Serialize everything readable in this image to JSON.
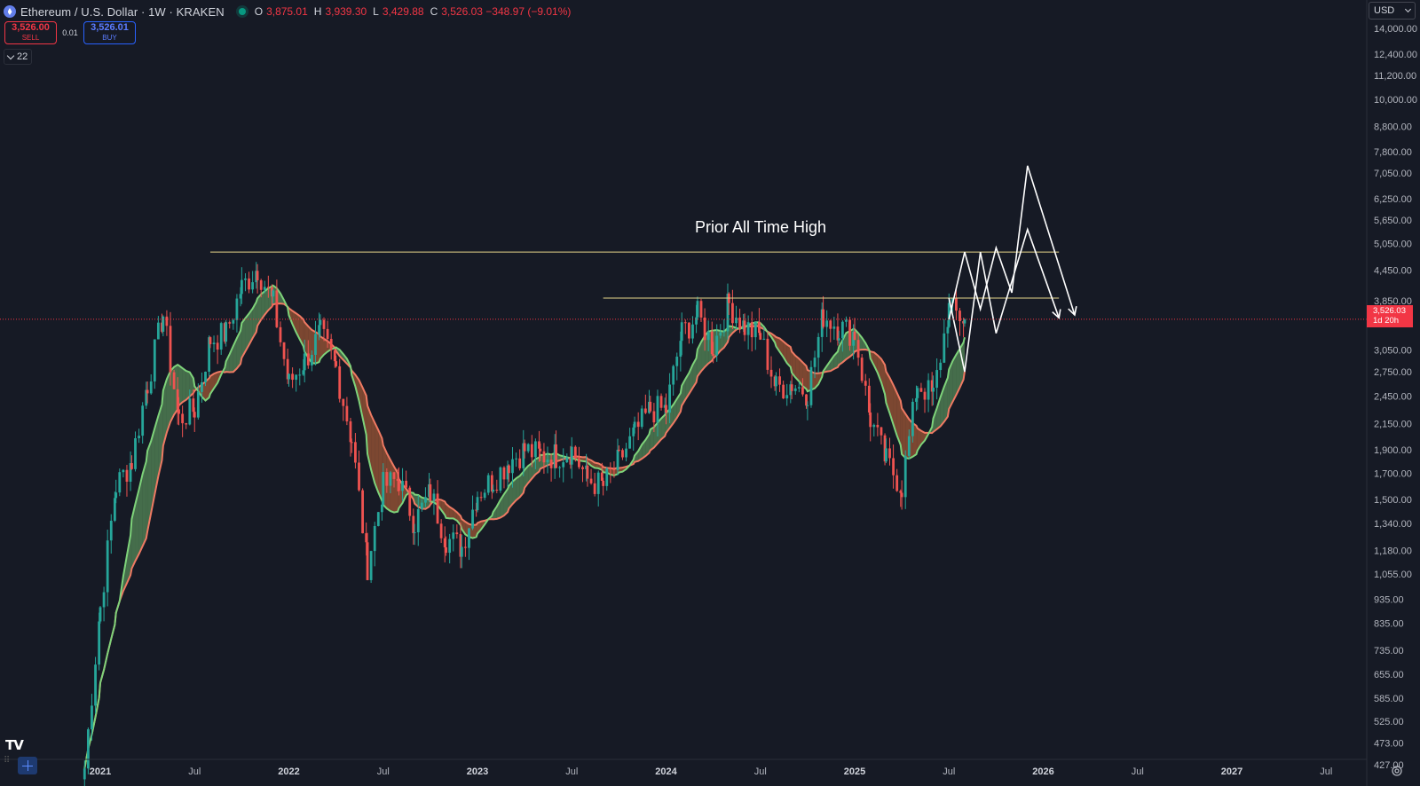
{
  "header": {
    "title": "Ethereum / U.S. Dollar · 1W · KRAKEN",
    "ohlc": [
      {
        "label": "O",
        "value": "3,875.01"
      },
      {
        "label": "H",
        "value": "3,939.30"
      },
      {
        "label": "L",
        "value": "3,429.88"
      },
      {
        "label": "C",
        "value": "3,526.03 −348.97 (−9.01%)"
      }
    ],
    "status_color": "#089981"
  },
  "trade": {
    "sell_price": "3,526.00",
    "sell_label": "SELL",
    "spread": "0.01",
    "buy_price": "3,526.01",
    "buy_label": "BUY"
  },
  "indicators_count": "22",
  "currency": "USD",
  "current_price": {
    "value": "3,526.03",
    "countdown": "1d 20h"
  },
  "annotation": "Prior All Time High",
  "logo_text": "TV",
  "colors": {
    "up": "#26a69a",
    "down": "#ef5350",
    "fast_ma": "#7ed37a",
    "slow_ma": "#ef7a63",
    "drawing": "#ffffff",
    "level": "#e6d58a",
    "background": "#161a25"
  },
  "chart_data": {
    "type": "candlestick",
    "scale": "log",
    "yticks": [
      "14,000.00",
      "12,400.00",
      "11,200.00",
      "10,000.00",
      "8,800.00",
      "7,800.00",
      "7,050.00",
      "6,250.00",
      "5,650.00",
      "5,050.00",
      "4,450.00",
      "3,850.00",
      "3,050.00",
      "2,750.00",
      "2,450.00",
      "2,150.00",
      "1,900.00",
      "1,700.00",
      "1,500.00",
      "1,340.00",
      "1,180.00",
      "1,055.00",
      "935.00",
      "835.00",
      "735.00",
      "655.00",
      "585.00",
      "525.00",
      "473.00",
      "427.00"
    ],
    "xticks": [
      "2021",
      "Jul",
      "2022",
      "Jul",
      "2023",
      "Jul",
      "2024",
      "Jul",
      "2025",
      "Jul",
      "2026",
      "Jul",
      "2027",
      "Jul"
    ],
    "horizontal_levels": [
      {
        "price": 4850,
        "from": "2021-08",
        "to": "2026-02"
      },
      {
        "price": 3900,
        "from": "2023-09",
        "to": "2026-02"
      }
    ],
    "price_path": [
      [
        "2020-12",
        420
      ],
      [
        "2021-01",
        900
      ],
      [
        "2021-02",
        1600
      ],
      [
        "2021-03",
        1800
      ],
      [
        "2021-04",
        2600
      ],
      [
        "2021-05",
        3600
      ],
      [
        "2021-06",
        2200
      ],
      [
        "2021-07",
        2300
      ],
      [
        "2021-08",
        3200
      ],
      [
        "2021-09",
        3300
      ],
      [
        "2021-10",
        4100
      ],
      [
        "2021-11",
        4500
      ],
      [
        "2021-12",
        3800
      ],
      [
        "2022-01",
        2600
      ],
      [
        "2022-02",
        2900
      ],
      [
        "2022-03",
        3300
      ],
      [
        "2022-04",
        2800
      ],
      [
        "2022-05",
        2000
      ],
      [
        "2022-06",
        1100
      ],
      [
        "2022-07",
        1600
      ],
      [
        "2022-08",
        1650
      ],
      [
        "2022-09",
        1350
      ],
      [
        "2022-10",
        1550
      ],
      [
        "2022-11",
        1250
      ],
      [
        "2022-12",
        1200
      ],
      [
        "2023-01",
        1550
      ],
      [
        "2023-02",
        1650
      ],
      [
        "2023-03",
        1800
      ],
      [
        "2023-04",
        1900
      ],
      [
        "2023-05",
        1850
      ],
      [
        "2023-06",
        1850
      ],
      [
        "2023-07",
        1900
      ],
      [
        "2023-08",
        1650
      ],
      [
        "2023-09",
        1600
      ],
      [
        "2023-10",
        1800
      ],
      [
        "2023-11",
        2050
      ],
      [
        "2023-12",
        2300
      ],
      [
        "2024-01",
        2300
      ],
      [
        "2024-02",
        3300
      ],
      [
        "2024-03",
        3600
      ],
      [
        "2024-04",
        3100
      ],
      [
        "2024-05",
        3800
      ],
      [
        "2024-06",
        3400
      ],
      [
        "2024-07",
        3250
      ],
      [
        "2024-08",
        2550
      ],
      [
        "2024-09",
        2600
      ],
      [
        "2024-10",
        2500
      ],
      [
        "2024-11",
        3600
      ],
      [
        "2024-12",
        3400
      ],
      [
        "2025-01",
        3300
      ],
      [
        "2025-02",
        2200
      ],
      [
        "2025-03",
        1800
      ],
      [
        "2025-04",
        1600
      ],
      [
        "2025-05",
        2600
      ],
      [
        "2025-06",
        2450
      ],
      [
        "2025-07",
        3700
      ],
      [
        "2025-08",
        3526
      ]
    ],
    "projection_a": [
      [
        "2025-07",
        3526
      ],
      [
        "2025-08",
        4850
      ],
      [
        "2025-09",
        3700
      ],
      [
        "2025-10",
        4950
      ],
      [
        "2025-11",
        4000
      ],
      [
        "2025-12",
        7300
      ],
      [
        "2026-03",
        3600
      ]
    ],
    "projection_b": [
      [
        "2025-07",
        3900
      ],
      [
        "2025-08",
        2750
      ],
      [
        "2025-09",
        4850
      ],
      [
        "2025-10",
        3300
      ],
      [
        "2025-12",
        5400
      ],
      [
        "2026-02",
        3550
      ]
    ]
  }
}
